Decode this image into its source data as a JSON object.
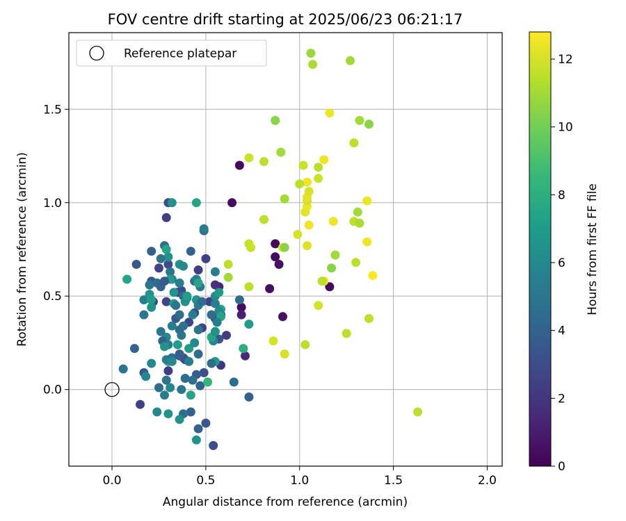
{
  "chart_data": {
    "type": "scatter",
    "title": "FOV centre drift starting at 2025/06/23 06:21:17",
    "xlabel": "Angular distance from reference (arcmin)",
    "ylabel": "Rotation from reference (arcmin)",
    "xlim": [
      -0.23,
      2.08
    ],
    "ylim": [
      -0.41,
      1.91
    ],
    "x_ticks": [
      0.0,
      0.5,
      1.0,
      1.5,
      2.0
    ],
    "x_tick_labels": [
      "0.0",
      "0.5",
      "1.0",
      "1.5",
      "2.0"
    ],
    "y_ticks": [
      0.0,
      0.5,
      1.0,
      1.5
    ],
    "y_tick_labels": [
      "0.0",
      "0.5",
      "1.0",
      "1.5"
    ],
    "grid": true,
    "legend": {
      "placement": "top-left",
      "entries": [
        {
          "label": "Reference platepar",
          "marker": "open-circle"
        }
      ]
    },
    "reference_point": {
      "x": 0.0,
      "y": 0.0
    },
    "colorbar": {
      "label": "Hours from first FF file",
      "colormap": "viridis",
      "range": [
        0,
        12.8
      ],
      "ticks": [
        0,
        2,
        4,
        6,
        8,
        10,
        12
      ],
      "tick_labels": [
        "0",
        "2",
        "4",
        "6",
        "8",
        "10",
        "12"
      ]
    },
    "colormap_stops": [
      "#440154",
      "#482878",
      "#3e4989",
      "#31688e",
      "#26828e",
      "#1f9e89",
      "#35b779",
      "#6ece58",
      "#b5de2b",
      "#fde725"
    ],
    "series": [
      {
        "points": [
          [
            0.68,
            1.2,
            0.3
          ],
          [
            0.64,
            1.0,
            0.5
          ],
          [
            0.87,
            0.78,
            0.3
          ],
          [
            0.87,
            0.71,
            0.4
          ],
          [
            0.89,
            0.67,
            0.6
          ],
          [
            0.84,
            0.54,
            0.5
          ],
          [
            1.16,
            0.55,
            0.3
          ],
          [
            0.91,
            0.39,
            0.6
          ],
          [
            0.69,
            0.44,
            0.4
          ],
          [
            0.69,
            0.4,
            1.2
          ],
          [
            0.71,
            0.18,
            1.5
          ],
          [
            0.58,
            0.13,
            2.0
          ],
          [
            0.57,
            0.55,
            1.3
          ],
          [
            0.55,
            0.56,
            1.8
          ],
          [
            0.3,
            1.0,
            3.0
          ],
          [
            0.29,
            0.92,
            2.5
          ],
          [
            0.46,
            0.64,
            2.3
          ],
          [
            0.5,
            0.7,
            2.5
          ],
          [
            0.25,
            0.65,
            2.6
          ],
          [
            0.3,
            0.67,
            3.0
          ],
          [
            0.13,
            0.67,
            3.5
          ],
          [
            0.21,
            0.58,
            3.6
          ],
          [
            0.22,
            0.47,
            2.5
          ],
          [
            0.29,
            0.47,
            2.6
          ],
          [
            0.35,
            0.52,
            2.4
          ],
          [
            0.37,
            0.53,
            3.0
          ],
          [
            0.52,
            0.47,
            2.4
          ],
          [
            0.55,
            0.38,
            2.7
          ],
          [
            0.58,
            0.4,
            2.5
          ],
          [
            0.61,
            0.29,
            2.3
          ],
          [
            0.57,
            0.27,
            3.5
          ],
          [
            0.48,
            0.33,
            2.6
          ],
          [
            0.44,
            0.41,
            2.9
          ],
          [
            0.41,
            0.36,
            2.7
          ],
          [
            0.39,
            0.16,
            2.5
          ],
          [
            0.3,
            0.1,
            2.3
          ],
          [
            0.15,
            -0.08,
            2.5
          ],
          [
            0.54,
            -0.3,
            3.0
          ],
          [
            0.5,
            -0.18,
            3.5
          ],
          [
            0.38,
            0.17,
            3.2
          ],
          [
            0.36,
            0.19,
            3.5
          ],
          [
            0.17,
            0.48,
            5.5
          ],
          [
            0.17,
            0.4,
            5.0
          ],
          [
            0.12,
            0.22,
            4.0
          ],
          [
            0.06,
            0.11,
            5.0
          ],
          [
            0.17,
            0.09,
            3.5
          ],
          [
            0.18,
            0.07,
            6.0
          ],
          [
            0.25,
            0.01,
            4.5
          ],
          [
            0.28,
            -0.03,
            5.5
          ],
          [
            0.31,
            0.01,
            6.0
          ],
          [
            0.37,
            0.0,
            5.0
          ],
          [
            0.39,
            0.06,
            4.5
          ],
          [
            0.47,
            0.02,
            4.0
          ],
          [
            0.49,
            0.09,
            3.2
          ],
          [
            0.45,
            0.08,
            3.8
          ],
          [
            0.43,
            0.05,
            4.5
          ],
          [
            0.42,
            -0.12,
            4.0
          ],
          [
            0.38,
            -0.13,
            4.5
          ],
          [
            0.36,
            -0.16,
            6.5
          ],
          [
            0.3,
            -0.13,
            6.5
          ],
          [
            0.24,
            -0.12,
            6.0
          ],
          [
            0.46,
            -0.21,
            4.0
          ],
          [
            0.45,
            -0.27,
            6.5
          ],
          [
            0.42,
            -0.03,
            7.5
          ],
          [
            0.51,
            0.04,
            8.5
          ],
          [
            0.55,
            0.15,
            7.0
          ],
          [
            0.53,
            0.14,
            4.5
          ],
          [
            0.65,
            0.04,
            4.5
          ],
          [
            0.73,
            -0.04,
            4.0
          ],
          [
            0.73,
            0.35,
            7.0
          ],
          [
            0.7,
            0.22,
            8.0
          ],
          [
            0.68,
            0.48,
            4.5
          ],
          [
            0.58,
            0.43,
            7.5
          ],
          [
            0.57,
            0.42,
            6.0
          ],
          [
            0.58,
            0.39,
            7.5
          ],
          [
            0.56,
            0.36,
            5.5
          ],
          [
            0.53,
            0.4,
            4.5
          ],
          [
            0.55,
            0.46,
            5.5
          ],
          [
            0.55,
            0.5,
            6.0
          ],
          [
            0.57,
            0.52,
            7.0
          ],
          [
            0.55,
            0.63,
            5.5
          ],
          [
            0.49,
            0.85,
            4.5
          ],
          [
            0.49,
            0.86,
            5.5
          ],
          [
            0.45,
            1.0,
            7.5
          ],
          [
            0.32,
            1.0,
            6.5
          ],
          [
            0.28,
            0.77,
            4.5
          ],
          [
            0.29,
            0.75,
            7.5
          ],
          [
            0.3,
            0.71,
            6.5
          ],
          [
            0.26,
            0.7,
            5.0
          ],
          [
            0.42,
            0.74,
            4.0
          ],
          [
            0.36,
            0.67,
            6.5
          ],
          [
            0.38,
            0.66,
            6.0
          ],
          [
            0.31,
            0.63,
            5.0
          ],
          [
            0.32,
            0.59,
            5.5
          ],
          [
            0.31,
            0.59,
            7.0
          ],
          [
            0.21,
            0.74,
            4.0
          ],
          [
            0.2,
            0.56,
            5.0
          ],
          [
            0.2,
            0.51,
            6.5
          ],
          [
            0.24,
            0.57,
            4.5
          ],
          [
            0.26,
            0.55,
            4.0
          ],
          [
            0.28,
            0.58,
            3.5
          ],
          [
            0.36,
            0.57,
            5.5
          ],
          [
            0.38,
            0.5,
            4.5
          ],
          [
            0.39,
            0.47,
            6.5
          ],
          [
            0.4,
            0.49,
            6.0
          ],
          [
            0.4,
            0.5,
            7.0
          ],
          [
            0.45,
            0.48,
            6.5
          ],
          [
            0.46,
            0.45,
            5.5
          ],
          [
            0.47,
            0.55,
            5.0
          ],
          [
            0.48,
            0.47,
            4.5
          ],
          [
            0.44,
            0.58,
            4.5
          ],
          [
            0.45,
            0.59,
            5.5
          ],
          [
            0.46,
            0.57,
            7.5
          ],
          [
            0.08,
            0.59,
            7.5
          ],
          [
            0.21,
            0.44,
            6.5
          ],
          [
            0.21,
            0.48,
            7.0
          ],
          [
            0.33,
            0.46,
            7.0
          ],
          [
            0.33,
            0.52,
            6.5
          ],
          [
            0.34,
            0.45,
            5.0
          ],
          [
            0.32,
            0.34,
            5.5
          ],
          [
            0.38,
            0.34,
            5.0
          ],
          [
            0.36,
            0.32,
            4.5
          ],
          [
            0.3,
            0.24,
            5.5
          ],
          [
            0.29,
            0.28,
            6.0
          ],
          [
            0.26,
            0.31,
            5.0
          ],
          [
            0.27,
            0.26,
            4.0
          ],
          [
            0.28,
            0.23,
            6.5
          ],
          [
            0.35,
            0.24,
            7.0
          ],
          [
            0.37,
            0.29,
            5.0
          ],
          [
            0.41,
            0.22,
            7.0
          ],
          [
            0.44,
            0.25,
            6.0
          ],
          [
            0.46,
            0.19,
            4.5
          ],
          [
            0.46,
            0.32,
            5.0
          ],
          [
            0.43,
            0.4,
            5.5
          ],
          [
            0.54,
            0.26,
            6.0
          ],
          [
            0.53,
            0.28,
            7.5
          ],
          [
            0.55,
            0.31,
            6.5
          ],
          [
            0.3,
            0.15,
            7.5
          ],
          [
            0.29,
            0.16,
            5.5
          ],
          [
            0.32,
            0.17,
            4.5
          ],
          [
            0.32,
            0.15,
            6.0
          ],
          [
            0.36,
            0.18,
            3.8
          ],
          [
            0.41,
            0.15,
            5.5
          ],
          [
            0.21,
            0.14,
            6.0
          ],
          [
            0.29,
            0.05,
            5.0
          ],
          [
            0.34,
            0.38,
            3.5
          ],
          [
            0.36,
            0.4,
            4.5
          ],
          [
            0.73,
            1.24,
            11.8
          ],
          [
            0.81,
            1.22,
            11.5
          ],
          [
            0.87,
            1.44,
            10.5
          ],
          [
            0.9,
            1.27,
            11.0
          ],
          [
            0.92,
            1.02,
            11.0
          ],
          [
            0.81,
            0.91,
            11.5
          ],
          [
            0.73,
            0.78,
            11.8
          ],
          [
            0.74,
            0.76,
            11.8
          ],
          [
            0.62,
            0.67,
            11.5
          ],
          [
            0.62,
            0.6,
            11.0
          ],
          [
            0.73,
            0.55,
            11.5
          ],
          [
            0.86,
            0.26,
            12.0
          ],
          [
            0.92,
            0.19,
            12.0
          ],
          [
            1.03,
            0.24,
            11.5
          ],
          [
            0.91,
            0.76,
            12.2
          ],
          [
            0.92,
            0.76,
            10.5
          ],
          [
            0.99,
            0.83,
            12.0
          ],
          [
            1.04,
            0.77,
            12.2
          ],
          [
            1.05,
            0.88,
            12.5
          ],
          [
            1.03,
            0.95,
            12.3
          ],
          [
            1.04,
            0.98,
            12.5
          ],
          [
            1.04,
            1.01,
            12.0
          ],
          [
            1.04,
            1.03,
            12.3
          ],
          [
            1.05,
            1.06,
            12.0
          ],
          [
            1.04,
            1.11,
            12.5
          ],
          [
            1.0,
            1.1,
            11.5
          ],
          [
            1.02,
            1.2,
            11.8
          ],
          [
            1.1,
            1.19,
            11.5
          ],
          [
            1.1,
            1.13,
            11.8
          ],
          [
            1.13,
            1.23,
            12.5
          ],
          [
            1.06,
            1.8,
            10.8
          ],
          [
            1.07,
            1.74,
            11.2
          ],
          [
            1.16,
            1.48,
            12.5
          ],
          [
            1.27,
            1.76,
            11.0
          ],
          [
            1.32,
            1.44,
            11.0
          ],
          [
            1.37,
            1.42,
            10.5
          ],
          [
            1.29,
            1.32,
            11.5
          ],
          [
            1.31,
            0.95,
            11.0
          ],
          [
            1.29,
            0.9,
            11.5
          ],
          [
            1.32,
            0.89,
            11.2
          ],
          [
            1.36,
            1.01,
            12.5
          ],
          [
            1.36,
            0.79,
            12.5
          ],
          [
            1.18,
            0.9,
            12.5
          ],
          [
            1.19,
            0.72,
            11.0
          ],
          [
            1.17,
            0.65,
            10.5
          ],
          [
            1.13,
            0.58,
            12.5
          ],
          [
            1.12,
            0.58,
            11.5
          ],
          [
            1.3,
            0.68,
            11.5
          ],
          [
            1.39,
            0.61,
            12.8
          ],
          [
            1.1,
            0.45,
            12.0
          ],
          [
            1.37,
            0.38,
            11.5
          ],
          [
            1.25,
            0.3,
            11.5
          ],
          [
            1.63,
            -0.12,
            11.5
          ]
        ]
      }
    ]
  }
}
